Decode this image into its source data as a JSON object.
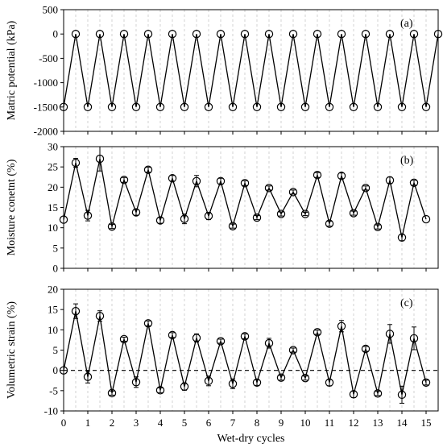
{
  "chart_data": [
    {
      "panel_label": "(a)",
      "type": "line",
      "ylabel": "Matric potential (kPa)",
      "ylim": [
        -2000,
        500
      ],
      "yticks": [
        500,
        0,
        -500,
        -1000,
        -1500,
        -2000
      ],
      "xlim": [
        0,
        15.5
      ],
      "marker": "open-circle",
      "error_bars": false,
      "zero_line": false,
      "grid": "vertical-dashed-every-0.5",
      "series": [
        {
          "x": [
            0,
            0.5,
            1,
            1.5,
            2,
            2.5,
            3,
            3.5,
            4,
            4.5,
            5,
            5.5,
            6,
            6.5,
            7,
            7.5,
            8,
            8.5,
            9,
            9.5,
            10,
            10.5,
            11,
            11.5,
            12,
            12.5,
            13,
            13.5,
            14,
            14.5,
            15,
            15.5
          ],
          "y": [
            -1500,
            0,
            -1500,
            0,
            -1500,
            0,
            -1500,
            0,
            -1500,
            0,
            -1500,
            0,
            -1500,
            0,
            -1500,
            0,
            -1500,
            0,
            -1500,
            0,
            -1500,
            0,
            -1500,
            0,
            -1500,
            0,
            -1500,
            0,
            -1500,
            0,
            -1500,
            0
          ]
        }
      ]
    },
    {
      "panel_label": "(b)",
      "type": "line",
      "ylabel": "Moisture conetnt (%)",
      "ylim": [
        0,
        30
      ],
      "yticks": [
        30,
        25,
        20,
        15,
        10,
        5,
        0
      ],
      "xlim": [
        0,
        15.5
      ],
      "marker": "open-circle",
      "error_bars": true,
      "zero_line": false,
      "grid": "vertical-dashed-every-0.5",
      "series": [
        {
          "x": [
            0,
            0.5,
            1,
            1.5,
            2,
            2.5,
            3,
            3.5,
            4,
            4.5,
            5,
            5.5,
            6,
            6.5,
            7,
            7.5,
            8,
            8.5,
            9,
            9.5,
            10,
            10.5,
            11,
            11.5,
            12,
            12.5,
            13,
            13.5,
            14,
            14.5,
            15,
            15.5
          ],
          "y": [
            12,
            26,
            13,
            27,
            10.3,
            21.8,
            13.8,
            24.3,
            11.8,
            22.2,
            12.2,
            21.5,
            12.9,
            21.5,
            10.4,
            21,
            12.5,
            19.8,
            13.4,
            18.8,
            13.4,
            23,
            11,
            22.8,
            13.6,
            19.8,
            10.2,
            21.7,
            7.6,
            21.1,
            12.1,
            null
          ],
          "err": [
            0,
            1.1,
            1.3,
            3,
            0.5,
            0.6,
            0.7,
            0.6,
            0.7,
            0.7,
            1.2,
            1.4,
            0.9,
            0.7,
            0.5,
            0.6,
            0.5,
            0.5,
            0.5,
            0.5,
            0.4,
            0.6,
            0.6,
            0.7,
            0.5,
            0.5,
            0.5,
            0.8,
            0.8,
            0.6,
            0,
            null
          ]
        }
      ]
    },
    {
      "panel_label": "(c)",
      "type": "line",
      "xlabel": "Wet-dry cycles",
      "ylabel": "Volumetric strain (%)",
      "ylim": [
        -10,
        20
      ],
      "yticks": [
        20,
        15,
        10,
        5,
        0,
        -5,
        -10
      ],
      "xlim": [
        0,
        15.5
      ],
      "xticks": [
        "0",
        "1",
        "2",
        "3",
        "4",
        "5",
        "6",
        "7",
        "8",
        "9",
        "10",
        "11",
        "12",
        "13",
        "14",
        "15"
      ],
      "marker": "open-circle",
      "error_bars": true,
      "zero_line": true,
      "grid": "vertical-dashed-every-0.5",
      "series": [
        {
          "x": [
            0,
            0.5,
            1,
            1.5,
            2,
            2.5,
            3,
            3.5,
            4,
            4.5,
            5,
            5.5,
            6,
            6.5,
            7,
            7.5,
            8,
            8.5,
            9,
            9.5,
            10,
            10.5,
            11,
            11.5,
            12,
            12.5,
            13,
            13.5,
            14,
            14.5,
            15,
            15.5
          ],
          "y": [
            0,
            14.6,
            -1.6,
            13.4,
            -5.6,
            7.7,
            -2.9,
            11.6,
            -4.9,
            8.7,
            -4,
            8,
            -2.6,
            7.2,
            -3.3,
            8.4,
            -3,
            6.7,
            -1.8,
            5,
            -1.9,
            9.4,
            -3,
            10.9,
            -5.9,
            5.3,
            -5.7,
            9,
            -6,
            7.9,
            -3,
            null
          ],
          "err": [
            0,
            1.8,
            1.5,
            1.3,
            0.5,
            0.5,
            1.3,
            0.6,
            0.6,
            0.6,
            0.9,
            1,
            1.2,
            0.5,
            1.2,
            0.6,
            0.7,
            1.2,
            0.6,
            0.5,
            0.5,
            0.5,
            0.8,
            1.4,
            0.8,
            0.6,
            0.5,
            2.3,
            2.1,
            2.8,
            0.6,
            null
          ]
        }
      ]
    }
  ]
}
